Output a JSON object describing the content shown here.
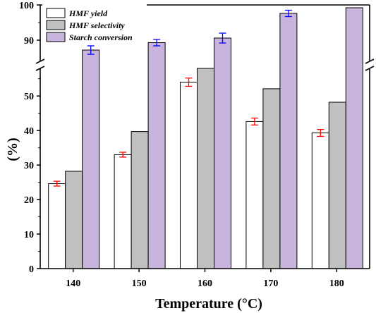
{
  "chart_data": {
    "type": "bar",
    "xlabel": "Temperature (°C)",
    "ylabel": "(%)",
    "categories": [
      "140",
      "150",
      "160",
      "170",
      "180"
    ],
    "y_axis_lower": {
      "range": [
        0,
        58
      ],
      "ticks": [
        "0",
        "10",
        "20",
        "30",
        "40",
        "50"
      ]
    },
    "y_axis_upper": {
      "range": [
        84,
        100
      ],
      "ticks": [
        "90",
        "100"
      ]
    },
    "axis_break": true,
    "legend_position": "top-left",
    "series": [
      {
        "name": "HMF yield",
        "values": [
          24.6,
          33.0,
          54.0,
          42.6,
          39.3
        ],
        "errors": [
          0.7,
          0.7,
          1.2,
          1.0,
          1.0
        ],
        "color": "#ffffff",
        "error_color": "#ff0000"
      },
      {
        "name": "HMF selectivity",
        "values": [
          28.2,
          39.7,
          60.3,
          52.1,
          48.2
        ],
        "errors": null,
        "color": "#c0c0c0"
      },
      {
        "name": "Starch conversion",
        "values": [
          87.2,
          89.3,
          90.6,
          97.6,
          99.2
        ],
        "errors": [
          1.2,
          0.9,
          1.4,
          0.9,
          null
        ],
        "color": "#c8b4dc",
        "error_color": "#0000ff"
      }
    ]
  }
}
